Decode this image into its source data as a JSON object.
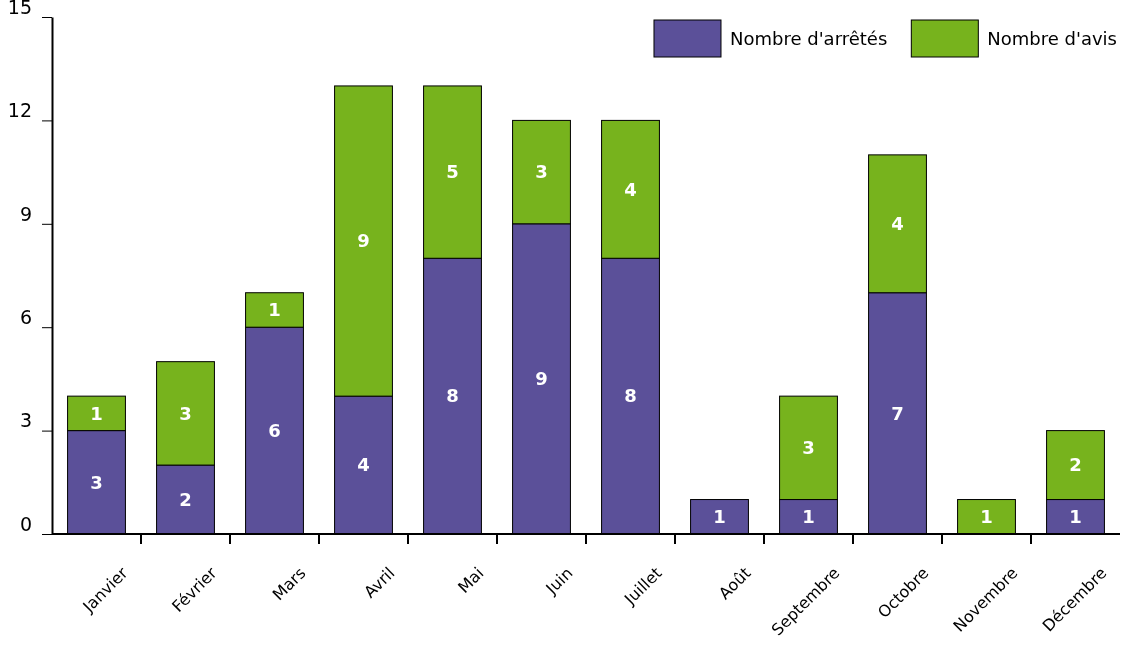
{
  "chart_data": {
    "type": "bar",
    "stacked": true,
    "categories": [
      "Janvier",
      "Février",
      "Mars",
      "Avril",
      "Mai",
      "Juin",
      "Juillet",
      "Août",
      "Septembre",
      "Octobre",
      "Novembre",
      "Décembre"
    ],
    "series": [
      {
        "name": "Nombre d'arrêtés",
        "color": "#5b5099",
        "values": [
          3,
          2,
          6,
          4,
          8,
          9,
          8,
          1,
          1,
          7,
          0,
          1
        ],
        "value_labels": [
          "3",
          "2",
          "6",
          "4",
          "8",
          "9",
          "8",
          "1",
          "1",
          "7",
          null,
          "1"
        ]
      },
      {
        "name": "Nombre d'avis",
        "color": "#77b31d",
        "values": [
          1,
          3,
          1,
          9,
          5,
          3,
          4,
          0,
          3,
          4,
          1,
          2
        ],
        "value_labels": [
          "1",
          "3",
          "1",
          "9",
          "5",
          "3",
          "4",
          null,
          "3",
          "4",
          "1",
          "2"
        ]
      }
    ],
    "ylim": [
      0,
      15
    ],
    "yticks": [
      0,
      3,
      6,
      9,
      12,
      15
    ],
    "grid": false,
    "legend": "top right"
  }
}
